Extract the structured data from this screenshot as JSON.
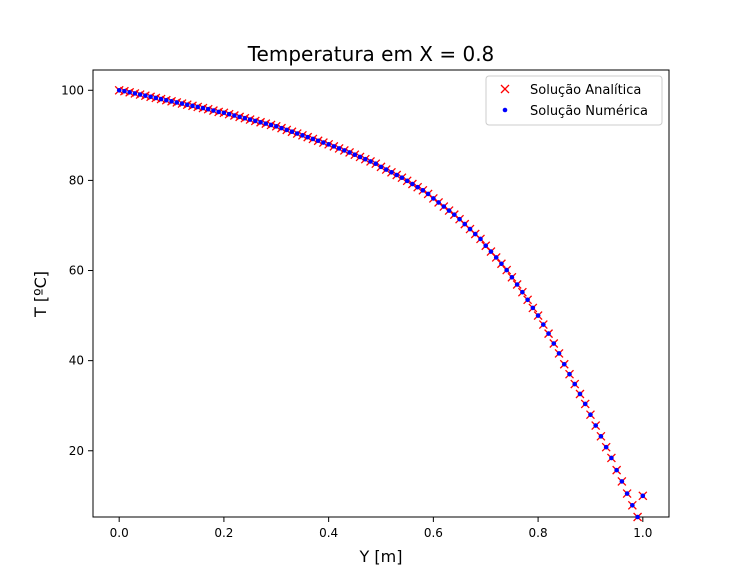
{
  "chart_data": {
    "type": "scatter",
    "title": "Temperatura em X = 0.8",
    "xlabel": "Y [m]",
    "ylabel": "T [ºC]",
    "xlim": [
      -0.05,
      1.05
    ],
    "ylim": [
      5.3,
      104.5
    ],
    "grid": false,
    "legend_position": "top-right",
    "xticks": [
      0.0,
      0.2,
      0.4,
      0.6,
      0.8,
      1.0
    ],
    "xtick_labels": [
      "0.0",
      "0.2",
      "0.4",
      "0.6",
      "0.8",
      "1.0"
    ],
    "yticks": [
      20,
      40,
      60,
      80,
      100
    ],
    "ytick_labels": [
      "20",
      "40",
      "60",
      "80",
      "100"
    ],
    "series": [
      {
        "name": "Solução Analítica",
        "marker": "x",
        "color": "#ff0000",
        "x": [
          0.0,
          0.01,
          0.02,
          0.03,
          0.04,
          0.05,
          0.06,
          0.07,
          0.08,
          0.09,
          0.1,
          0.11,
          0.12,
          0.13,
          0.14,
          0.15,
          0.16,
          0.17,
          0.18,
          0.19,
          0.2,
          0.21,
          0.22,
          0.23,
          0.24,
          0.25,
          0.26,
          0.27,
          0.28,
          0.29,
          0.3,
          0.31,
          0.32,
          0.33,
          0.34,
          0.35,
          0.36,
          0.37,
          0.38,
          0.39,
          0.4,
          0.41,
          0.42,
          0.43,
          0.44,
          0.45,
          0.46,
          0.47,
          0.48,
          0.49,
          0.5,
          0.51,
          0.52,
          0.53,
          0.54,
          0.55,
          0.56,
          0.57,
          0.58,
          0.59,
          0.6,
          0.61,
          0.62,
          0.63,
          0.64,
          0.65,
          0.66,
          0.67,
          0.68,
          0.69,
          0.7,
          0.71,
          0.72,
          0.73,
          0.74,
          0.75,
          0.76,
          0.77,
          0.78,
          0.79,
          0.8,
          0.81,
          0.82,
          0.83,
          0.84,
          0.85,
          0.86,
          0.87,
          0.88,
          0.89,
          0.9,
          0.91,
          0.92,
          0.93,
          0.94,
          0.95,
          0.96,
          0.97,
          0.98,
          0.99,
          1.0
        ],
        "y": [
          100.0,
          99.8,
          99.55,
          99.3,
          99.05,
          98.8,
          98.55,
          98.3,
          98.05,
          97.8,
          97.55,
          97.3,
          97.05,
          96.8,
          96.55,
          96.3,
          96.05,
          95.8,
          95.5,
          95.2,
          95.0,
          94.7,
          94.4,
          94.1,
          93.8,
          93.5,
          93.2,
          92.9,
          92.6,
          92.3,
          92.0,
          91.6,
          91.2,
          90.8,
          90.4,
          90.0,
          89.6,
          89.2,
          88.8,
          88.4,
          88.0,
          87.55,
          87.1,
          86.65,
          86.2,
          85.7,
          85.2,
          84.7,
          84.2,
          83.7,
          83.0,
          82.4,
          81.8,
          81.2,
          80.6,
          79.9,
          79.2,
          78.5,
          77.8,
          77.0,
          76.0,
          75.1,
          74.2,
          73.3,
          72.4,
          71.4,
          70.3,
          69.2,
          68.1,
          67.0,
          65.5,
          64.2,
          62.9,
          61.5,
          60.1,
          58.5,
          56.9,
          55.2,
          53.5,
          51.7,
          50.0,
          48.0,
          46.0,
          43.8,
          41.6,
          39.2,
          37.0,
          34.8,
          32.6,
          30.4,
          28.0,
          25.6,
          23.2,
          20.8,
          18.4,
          15.7,
          13.2,
          10.5,
          7.9,
          5.3,
          10.0
        ],
        "note_last": "final point at (1.0, 10.0)"
      },
      {
        "name": "Solução Numérica",
        "marker": "o",
        "color": "#0000ff",
        "x": [
          0.0,
          0.01,
          0.02,
          0.03,
          0.04,
          0.05,
          0.06,
          0.07,
          0.08,
          0.09,
          0.1,
          0.11,
          0.12,
          0.13,
          0.14,
          0.15,
          0.16,
          0.17,
          0.18,
          0.19,
          0.2,
          0.21,
          0.22,
          0.23,
          0.24,
          0.25,
          0.26,
          0.27,
          0.28,
          0.29,
          0.3,
          0.31,
          0.32,
          0.33,
          0.34,
          0.35,
          0.36,
          0.37,
          0.38,
          0.39,
          0.4,
          0.41,
          0.42,
          0.43,
          0.44,
          0.45,
          0.46,
          0.47,
          0.48,
          0.49,
          0.5,
          0.51,
          0.52,
          0.53,
          0.54,
          0.55,
          0.56,
          0.57,
          0.58,
          0.59,
          0.6,
          0.61,
          0.62,
          0.63,
          0.64,
          0.65,
          0.66,
          0.67,
          0.68,
          0.69,
          0.7,
          0.71,
          0.72,
          0.73,
          0.74,
          0.75,
          0.76,
          0.77,
          0.78,
          0.79,
          0.8,
          0.81,
          0.82,
          0.83,
          0.84,
          0.85,
          0.86,
          0.87,
          0.88,
          0.89,
          0.9,
          0.91,
          0.92,
          0.93,
          0.94,
          0.95,
          0.96,
          0.97,
          0.98,
          0.99,
          1.0
        ],
        "y": [
          100.0,
          99.8,
          99.55,
          99.3,
          99.05,
          98.8,
          98.55,
          98.3,
          98.05,
          97.8,
          97.55,
          97.3,
          97.05,
          96.8,
          96.55,
          96.3,
          96.05,
          95.8,
          95.5,
          95.2,
          95.0,
          94.7,
          94.4,
          94.1,
          93.8,
          93.5,
          93.2,
          92.9,
          92.6,
          92.3,
          92.0,
          91.6,
          91.2,
          90.8,
          90.4,
          90.0,
          89.6,
          89.2,
          88.8,
          88.4,
          88.0,
          87.55,
          87.1,
          86.65,
          86.2,
          85.7,
          85.2,
          84.7,
          84.2,
          83.7,
          83.0,
          82.4,
          81.8,
          81.2,
          80.6,
          79.9,
          79.2,
          78.5,
          77.8,
          77.0,
          76.0,
          75.1,
          74.2,
          73.3,
          72.4,
          71.4,
          70.3,
          69.2,
          68.1,
          67.0,
          65.5,
          64.2,
          62.9,
          61.5,
          60.1,
          58.5,
          56.9,
          55.2,
          53.5,
          51.7,
          50.0,
          48.0,
          46.0,
          43.8,
          41.6,
          39.2,
          37.0,
          34.8,
          32.6,
          30.4,
          28.0,
          25.6,
          23.2,
          20.8,
          18.4,
          15.7,
          13.2,
          10.5,
          7.9,
          5.3,
          10.0
        ]
      }
    ]
  }
}
